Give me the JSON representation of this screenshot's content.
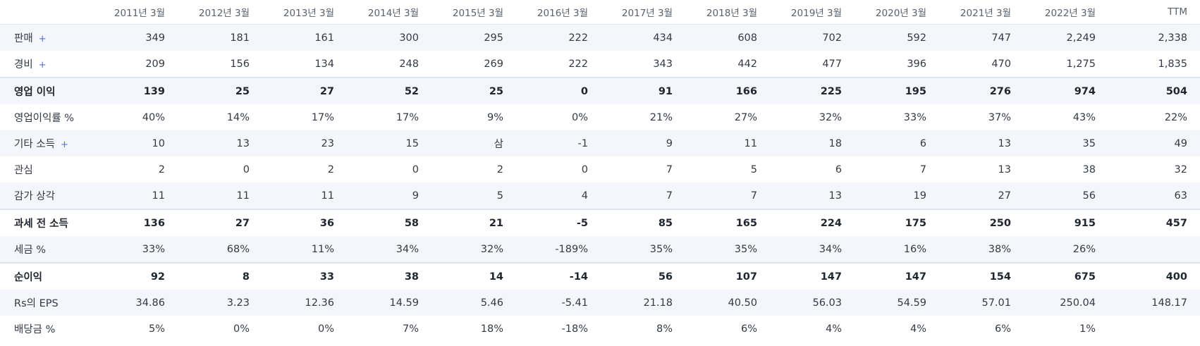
{
  "headers": [
    "2011년 3월",
    "2012년 3월",
    "2013년 3월",
    "2014년 3월",
    "2015년 3월",
    "2016년 3월",
    "2017년 3월",
    "2018년 3월",
    "2019년 3월",
    "2020년 3월",
    "2021년 3월",
    "2022년 3월",
    "TTM"
  ],
  "expand_symbol": "+",
  "rows": [
    {
      "label": "판매",
      "expandable": true,
      "bold": false,
      "sep": false,
      "values": [
        "349",
        "181",
        "161",
        "300",
        "295",
        "222",
        "434",
        "608",
        "702",
        "592",
        "747",
        "2,249",
        "2,338"
      ]
    },
    {
      "label": "경비",
      "expandable": true,
      "bold": false,
      "sep": false,
      "values": [
        "209",
        "156",
        "134",
        "248",
        "269",
        "222",
        "343",
        "442",
        "477",
        "396",
        "470",
        "1,275",
        "1,835"
      ]
    },
    {
      "label": "영업 이익",
      "expandable": false,
      "bold": true,
      "sep": true,
      "values": [
        "139",
        "25",
        "27",
        "52",
        "25",
        "0",
        "91",
        "166",
        "225",
        "195",
        "276",
        "974",
        "504"
      ]
    },
    {
      "label": "영업이익률 %",
      "expandable": false,
      "bold": false,
      "sep": false,
      "values": [
        "40%",
        "14%",
        "17%",
        "17%",
        "9%",
        "0%",
        "21%",
        "27%",
        "32%",
        "33%",
        "37%",
        "43%",
        "22%"
      ]
    },
    {
      "label": "기타 소득",
      "expandable": true,
      "bold": false,
      "sep": false,
      "values": [
        "10",
        "13",
        "23",
        "15",
        "삼",
        "-1",
        "9",
        "11",
        "18",
        "6",
        "13",
        "35",
        "49"
      ]
    },
    {
      "label": "관심",
      "expandable": false,
      "bold": false,
      "sep": false,
      "values": [
        "2",
        "0",
        "2",
        "0",
        "2",
        "0",
        "7",
        "5",
        "6",
        "7",
        "13",
        "38",
        "32"
      ]
    },
    {
      "label": "감가 상각",
      "expandable": false,
      "bold": false,
      "sep": false,
      "values": [
        "11",
        "11",
        "11",
        "9",
        "5",
        "4",
        "7",
        "7",
        "13",
        "19",
        "27",
        "56",
        "63"
      ]
    },
    {
      "label": "과세 전 소득",
      "expandable": false,
      "bold": true,
      "sep": true,
      "values": [
        "136",
        "27",
        "36",
        "58",
        "21",
        "-5",
        "85",
        "165",
        "224",
        "175",
        "250",
        "915",
        "457"
      ]
    },
    {
      "label": "세금 %",
      "expandable": false,
      "bold": false,
      "sep": false,
      "values": [
        "33%",
        "68%",
        "11%",
        "34%",
        "32%",
        "-189%",
        "35%",
        "35%",
        "34%",
        "16%",
        "38%",
        "26%",
        ""
      ]
    },
    {
      "label": "순이익",
      "expandable": false,
      "bold": true,
      "sep": true,
      "values": [
        "92",
        "8",
        "33",
        "38",
        "14",
        "-14",
        "56",
        "107",
        "147",
        "147",
        "154",
        "675",
        "400"
      ]
    },
    {
      "label": "Rs의 EPS",
      "expandable": false,
      "bold": false,
      "sep": false,
      "values": [
        "34.86",
        "3.23",
        "12.36",
        "14.59",
        "5.46",
        "-5.41",
        "21.18",
        "40.50",
        "56.03",
        "54.59",
        "57.01",
        "250.04",
        "148.17"
      ]
    },
    {
      "label": "배당금 %",
      "expandable": false,
      "bold": false,
      "sep": false,
      "values": [
        "5%",
        "0%",
        "0%",
        "7%",
        "18%",
        "-18%",
        "8%",
        "6%",
        "4%",
        "4%",
        "6%",
        "1%",
        ""
      ]
    }
  ]
}
